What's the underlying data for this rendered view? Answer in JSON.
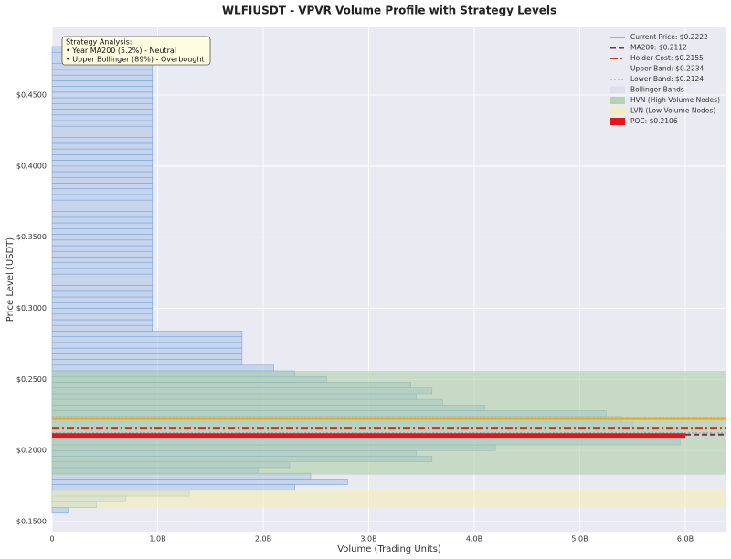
{
  "chart_data": {
    "type": "histogram",
    "orientation": "horizontal",
    "title": "WLFIUSDT - VPVR Volume Profile with Strategy Levels",
    "xlabel": "Volume (Trading Units)",
    "ylabel": "Price Level (USDT)",
    "bins": [
      0.156,
      0.16,
      0.164,
      0.168,
      0.172,
      0.176,
      0.18,
      0.184,
      0.188,
      0.192,
      0.196,
      0.2,
      0.204,
      0.208,
      0.212,
      0.216,
      0.22,
      0.224,
      0.228,
      0.232,
      0.236,
      0.24,
      0.244,
      0.248,
      0.252,
      0.256,
      0.26,
      0.264,
      0.268,
      0.272,
      0.276,
      0.28,
      0.284,
      0.288,
      0.292,
      0.296,
      0.3,
      0.304,
      0.308,
      0.312,
      0.316,
      0.32,
      0.324,
      0.328,
      0.332,
      0.336,
      0.34,
      0.344,
      0.348,
      0.352,
      0.356,
      0.36,
      0.364,
      0.368,
      0.372,
      0.376,
      0.38,
      0.384,
      0.388,
      0.392,
      0.396,
      0.4,
      0.404,
      0.408,
      0.412,
      0.416,
      0.42,
      0.424,
      0.428,
      0.432,
      0.436,
      0.44,
      0.444,
      0.448,
      0.452,
      0.456,
      0.46,
      0.464,
      0.468,
      0.472,
      0.476,
      0.48,
      0.484
    ],
    "values": [
      0.15,
      0.42,
      0.7,
      1.3,
      2.3,
      2.8,
      2.45,
      1.95,
      2.25,
      3.6,
      3.45,
      4.2,
      5.95,
      6.0,
      5.95,
      5.5,
      5.4,
      5.25,
      4.1,
      3.7,
      3.45,
      3.6,
      3.4,
      2.6,
      2.3,
      2.1,
      1.8,
      1.8,
      1.8,
      1.8,
      1.8,
      1.8,
      0.95,
      0.95,
      0.95,
      0.95,
      0.95,
      0.95,
      0.95,
      0.95,
      0.95,
      0.95,
      0.95,
      0.95,
      0.95,
      0.95,
      0.95,
      0.95,
      0.95,
      0.95,
      0.95,
      0.95,
      0.95,
      0.95,
      0.95,
      0.95,
      0.95,
      0.95,
      0.95,
      0.95,
      0.95,
      0.95,
      0.95,
      0.95,
      0.95,
      0.95,
      0.95,
      0.95,
      0.95,
      0.95,
      0.95,
      0.95,
      0.95,
      0.95,
      0.95,
      0.95,
      0.95,
      0.95,
      0.95,
      0.95,
      0.95,
      0.95
    ],
    "color": "#aec7e8",
    "xlim": [
      0,
      6.39
    ],
    "xticks": [
      0,
      {
        "value": 1,
        "label": "1.0B"
      },
      {
        "value": 2,
        "label": "2.0B"
      },
      {
        "value": 3,
        "label": "3.0B"
      },
      {
        "value": 4,
        "label": "4.0B"
      },
      {
        "value": 5,
        "label": "5.0B"
      },
      {
        "value": 6,
        "label": "6.0B"
      }
    ],
    "ylim": [
      0.143,
      0.4975
    ],
    "yticks": [
      {
        "value": 0.15,
        "label": "$0.1500"
      },
      {
        "value": 0.2,
        "label": "$0.2000"
      },
      {
        "value": 0.25,
        "label": "$0.2500"
      },
      {
        "value": 0.3,
        "label": "$0.3000"
      },
      {
        "value": 0.35,
        "label": "$0.3500"
      },
      {
        "value": 0.4,
        "label": "$0.4000"
      },
      {
        "value": 0.45,
        "label": "$0.4500"
      }
    ],
    "grid": true,
    "legend": "upper right",
    "levels": [
      {
        "name": "Current Price: $0.2222",
        "value": 0.2222,
        "color": "#f0a818",
        "style": "solid"
      },
      {
        "name": "MA200: $0.2112",
        "value": 0.2112,
        "color": "#7b2d5a",
        "style": "dashed"
      },
      {
        "name": "Holder Cost: $0.2155",
        "value": 0.2155,
        "color": "#c0392b",
        "style": "dashdot"
      },
      {
        "name": "Upper Band: $0.2234",
        "value": 0.2234,
        "color": "#999999",
        "style": "dotted"
      },
      {
        "name": "Lower Band: $0.2124",
        "value": 0.2124,
        "color": "#999999",
        "style": "dotted"
      }
    ],
    "zones": [
      {
        "name": "Bollinger Bands",
        "range": [
          0.2124,
          0.2234
        ],
        "color": "#dcdce6"
      },
      {
        "name": "HVN (High Volume Nodes)",
        "range": [
          0.183,
          0.256
        ],
        "color": "#a8cca0"
      },
      {
        "name": "LVN (Low Volume Nodes)",
        "range": [
          0.16,
          0.172
        ],
        "color": "#f2efb0"
      }
    ],
    "poc": {
      "name": "POC: $0.2106",
      "value": 0.2106,
      "color": "#e8141c"
    },
    "annotation": [
      "Strategy Analysis:",
      "• Year MA200 (5.2%) - Neutral",
      "• Upper Bollinger (89%) - Overbought"
    ]
  }
}
